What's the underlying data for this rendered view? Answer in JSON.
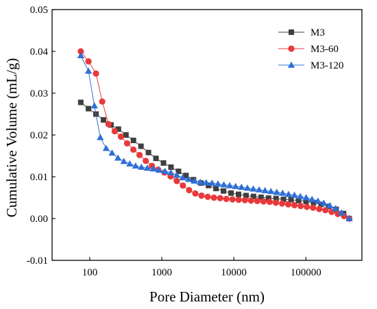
{
  "chart_data": {
    "type": "scatter",
    "title": "",
    "xlabel": "Pore Diameter (nm)",
    "ylabel": "Cumulative Volume (mL/g)",
    "x_scale": "log",
    "xlim": [
      30,
      600000
    ],
    "ylim": [
      -0.01,
      0.05
    ],
    "x_ticks": [
      100,
      1000,
      10000,
      100000
    ],
    "x_tick_labels": [
      "100",
      "1000",
      "10000",
      "100000"
    ],
    "y_ticks": [
      -0.01,
      0.0,
      0.01,
      0.02,
      0.03,
      0.04,
      0.05
    ],
    "y_tick_labels": [
      "-0.01",
      "0.00",
      "0.01",
      "0.02",
      "0.03",
      "0.04",
      "0.05"
    ],
    "grid": false,
    "legend_position": "top-right",
    "series": [
      {
        "name": "M3",
        "color": "#3f3f3f",
        "marker": "square",
        "x": [
          75,
          96,
          122,
          155,
          197,
          250,
          318,
          404,
          514,
          653,
          830,
          1055,
          1341,
          1705,
          2167,
          2754,
          3501,
          4450,
          5656,
          7189,
          9138,
          11615,
          14763,
          18765,
          23852,
          30317,
          38535,
          48980,
          62257,
          79132,
          100582,
          127846,
          162500,
          206549,
          262537,
          333700,
          400000
        ],
        "y": [
          0.0278,
          0.0263,
          0.025,
          0.0236,
          0.0224,
          0.0214,
          0.02,
          0.0187,
          0.0173,
          0.0158,
          0.0144,
          0.0133,
          0.0123,
          0.0113,
          0.0103,
          0.0093,
          0.0085,
          0.0079,
          0.0072,
          0.0066,
          0.0061,
          0.0058,
          0.0055,
          0.0053,
          0.0051,
          0.0049,
          0.0048,
          0.0046,
          0.0045,
          0.0043,
          0.0041,
          0.0038,
          0.0034,
          0.0029,
          0.0022,
          0.0012,
          0.0
        ]
      },
      {
        "name": "M3-60",
        "color": "#e8393b",
        "marker": "circle",
        "x": [
          75,
          96,
          122,
          149,
          182,
          222,
          271,
          330,
          403,
          491,
          599,
          730,
          890,
          1085,
          1322,
          1612,
          1965,
          2395,
          2920,
          3559,
          4339,
          5289,
          6448,
          7860,
          9581,
          11680,
          14238,
          17356,
          21157,
          25790,
          31438,
          38324,
          46717,
          56947,
          69419,
          84622,
          103154,
          125745,
          153283,
          186852,
          227773,
          277656,
          338462,
          400000
        ],
        "y": [
          0.04,
          0.0376,
          0.0347,
          0.028,
          0.0226,
          0.0209,
          0.0196,
          0.018,
          0.0165,
          0.0152,
          0.0138,
          0.0126,
          0.0117,
          0.011,
          0.0101,
          0.009,
          0.0079,
          0.0068,
          0.006,
          0.0055,
          0.0052,
          0.005,
          0.0049,
          0.0047,
          0.0046,
          0.0045,
          0.0044,
          0.0043,
          0.0042,
          0.0041,
          0.004,
          0.0038,
          0.0036,
          0.0034,
          0.0032,
          0.003,
          0.0028,
          0.0026,
          0.0023,
          0.002,
          0.0016,
          0.0011,
          0.0006,
          0.0
        ]
      },
      {
        "name": "M3-120",
        "color": "#2f6fd6",
        "marker": "triangle",
        "x": [
          75,
          96,
          116,
          140,
          169,
          204,
          246,
          297,
          359,
          433,
          522,
          630,
          761,
          918,
          1108,
          1337,
          1614,
          1948,
          2350,
          2837,
          3423,
          4132,
          4987,
          6019,
          7264,
          8767,
          10581,
          12770,
          15412,
          18600,
          22448,
          27093,
          32698,
          39463,
          47627,
          57480,
          69372,
          83724,
          101045,
          121950,
          147180,
          177630,
          214379,
          258731,
          312259,
          400000
        ],
        "y": [
          0.039,
          0.0353,
          0.027,
          0.0194,
          0.0168,
          0.0157,
          0.0145,
          0.0137,
          0.0131,
          0.0126,
          0.0123,
          0.0121,
          0.0119,
          0.0116,
          0.0113,
          0.011,
          0.0104,
          0.0098,
          0.0094,
          0.009,
          0.0087,
          0.0086,
          0.0085,
          0.0083,
          0.0081,
          0.0079,
          0.0077,
          0.0075,
          0.0073,
          0.0071,
          0.0069,
          0.0067,
          0.0065,
          0.0063,
          0.0061,
          0.0058,
          0.0056,
          0.0053,
          0.005,
          0.0046,
          0.0042,
          0.0037,
          0.0031,
          0.0024,
          0.0014,
          0.0
        ]
      }
    ]
  }
}
